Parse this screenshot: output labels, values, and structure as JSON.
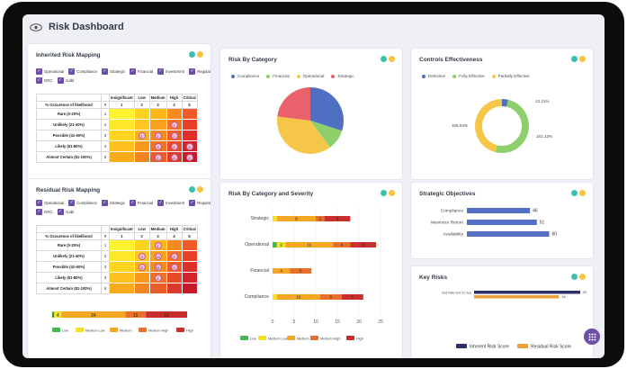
{
  "app": {
    "title": "Risk Dashboard"
  },
  "colors": {
    "teal": "#3bbfae",
    "amber": "#f5c540",
    "purple": "#6b4ea6"
  },
  "filters": [
    "Operational",
    "Compliance",
    "Strategic",
    "Financial",
    "Investment",
    "Regulatory",
    "GRC",
    "Audit"
  ],
  "inherent": {
    "title": "Inherited Risk Mapping",
    "header_label": "% Occurence of likelihood",
    "header_num": "#",
    "impact_cols": [
      "Insignificant",
      "Low",
      "Medium",
      "High",
      "Critical"
    ],
    "impact_nums": [
      "1",
      "2",
      "3",
      "4",
      "5"
    ],
    "rows": [
      {
        "label": "Rare (0-20%)",
        "num": "1",
        "cells": [
          "",
          "",
          "",
          "",
          ""
        ]
      },
      {
        "label": "Unlikely (21-40%)",
        "num": "2",
        "cells": [
          "",
          "",
          "",
          "1",
          ""
        ]
      },
      {
        "label": "Possible (41-60%)",
        "num": "3",
        "cells": [
          "",
          "1",
          "1",
          "1",
          ""
        ]
      },
      {
        "label": "Likely (61-80%)",
        "num": "4",
        "cells": [
          "",
          "",
          "4",
          "4",
          "4"
        ]
      },
      {
        "label": "Almost Certain (81-100%)",
        "num": "5",
        "cells": [
          "",
          "",
          "1",
          "4",
          "2"
        ]
      }
    ]
  },
  "residual": {
    "title": "Residual Risk Mapping",
    "header_label": "% Occurence of likelihood",
    "header_num": "#",
    "impact_cols": [
      "Insignificant",
      "Low",
      "Medium",
      "High",
      "Critical"
    ],
    "impact_nums": [
      "1",
      "2",
      "3",
      "4",
      "5"
    ],
    "rows": [
      {
        "label": "Rare (0-20%)",
        "num": "1",
        "cells": [
          "",
          "",
          "1",
          "",
          ""
        ]
      },
      {
        "label": "Unlikely (21-40%)",
        "num": "2",
        "cells": [
          "",
          "3",
          "10",
          "2",
          ""
        ]
      },
      {
        "label": "Possible (41-60%)",
        "num": "3",
        "cells": [
          "",
          "3",
          "11",
          "3",
          ""
        ]
      },
      {
        "label": "Likely (61-80%)",
        "num": "4",
        "cells": [
          "",
          "",
          "1",
          "",
          ""
        ]
      },
      {
        "label": "Almost Certain (81-100%)",
        "num": "5",
        "cells": [
          "",
          "",
          "",
          "",
          ""
        ]
      }
    ],
    "severity_bar": {
      "values": [
        1,
        4,
        34,
        11,
        22
      ],
      "labels": [
        "1",
        "4",
        "34",
        "11",
        "22"
      ]
    },
    "legend": [
      "Low",
      "Medium Low",
      "Medium",
      "Medium High",
      "High"
    ]
  },
  "severity_colors": [
    "#3fb950",
    "#f2e126",
    "#f5a623",
    "#e8702a",
    "#c9302c"
  ],
  "chart_data": [
    {
      "type": "pie",
      "title": "Risk By Category",
      "labels": [
        "Compliance",
        "Financial",
        "Operational",
        "Strategic"
      ],
      "values": [
        30,
        10,
        37,
        23
      ],
      "colors": [
        "#4e6fc2",
        "#8ccf6b",
        "#f6c648",
        "#e8616b"
      ]
    },
    {
      "type": "pie",
      "title": "Controls Effectiveness",
      "labels": [
        "Detective",
        "Fully Effective",
        "Partially Effective"
      ],
      "values": [
        13.21,
        181.13,
        166.04
      ],
      "value_labels": [
        "13.21%",
        "181.13%",
        "166.04%"
      ],
      "colors": [
        "#4e6fc2",
        "#8ccf6b",
        "#f6c648"
      ]
    },
    {
      "type": "bar",
      "title": "Risk By Category and Severity",
      "categories": [
        "Strategic",
        "Operational",
        "Financial",
        "Compliance"
      ],
      "series": [
        {
          "name": "Low",
          "values": [
            0,
            1,
            0,
            0
          ]
        },
        {
          "name": "Medium Low",
          "values": [
            1,
            2,
            0,
            1
          ]
        },
        {
          "name": "Medium",
          "values": [
            9,
            11,
            4,
            10
          ]
        },
        {
          "name": "Medium High",
          "values": [
            2,
            4,
            5,
            5
          ]
        },
        {
          "name": "High",
          "values": [
            6,
            6,
            0,
            5
          ]
        }
      ],
      "xticks": [
        "0",
        "5",
        "10",
        "15",
        "20",
        "25"
      ],
      "xlim": [
        0,
        25
      ],
      "legend": [
        "Low",
        "Medium Low",
        "Medium",
        "Medium High",
        "High"
      ]
    },
    {
      "type": "bar",
      "title": "Strategic Objectives",
      "categories": [
        "Compliance",
        "Maximize Return",
        "Availability"
      ],
      "values": [
        46,
        51,
        60
      ],
      "labels": [
        "46",
        "51",
        "60"
      ],
      "xlim": [
        0,
        80
      ]
    },
    {
      "type": "bar",
      "title": "Key Risks",
      "categories": [
        "2nd Risk test 22-Jun"
      ],
      "series": [
        {
          "name": "Inherent Risk Score",
          "values": [
            20
          ]
        },
        {
          "name": "Residual Risk Score",
          "values": [
            16
          ]
        }
      ],
      "value_labels": [
        "20",
        "16"
      ],
      "colors": [
        "#2b2f6b",
        "#e9a13b"
      ]
    }
  ]
}
